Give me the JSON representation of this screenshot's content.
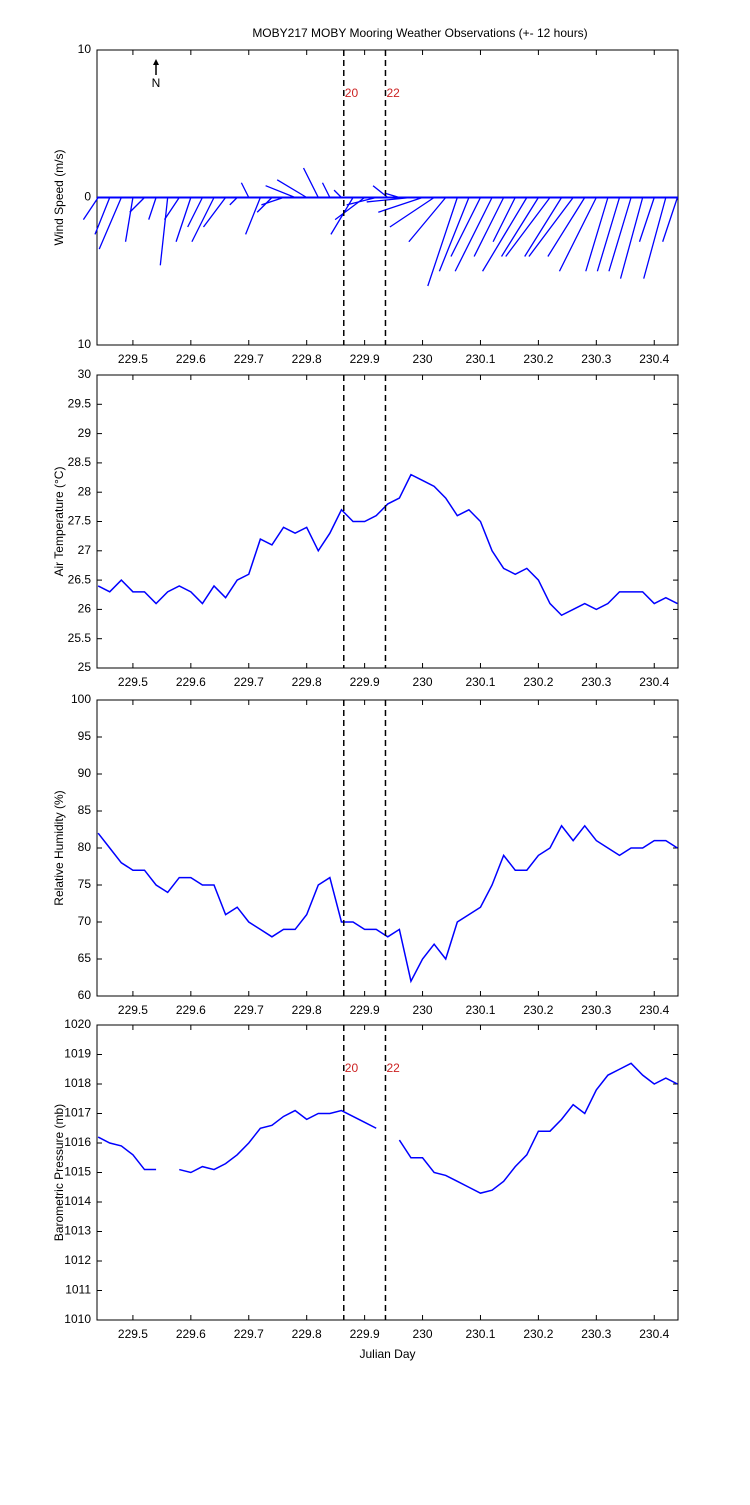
{
  "chart_data": [
    {
      "type": "stick",
      "title": "MOBY217 MOBY Mooring Weather Observations (+- 12 hours)",
      "ylabel": "Wind Speed (m/s)",
      "color": "#0000ff",
      "xlim": [
        229.438,
        230.441
      ],
      "xticks": [
        229.5,
        229.6,
        229.7,
        229.8,
        229.9,
        230,
        230.1,
        230.2,
        230.3,
        230.4
      ],
      "ylim": [
        -10,
        10
      ],
      "yticks": [
        {
          "value": -10,
          "label": "10"
        },
        0,
        10
      ],
      "north_label": "N",
      "vlines": [
        {
          "x": 229.864,
          "label": "20"
        },
        {
          "x": 229.936,
          "label": "22"
        }
      ],
      "vline_label_color": "#cc2222",
      "x": [
        229.44,
        229.46,
        229.48,
        229.5,
        229.52,
        229.54,
        229.56,
        229.58,
        229.6,
        229.62,
        229.64,
        229.66,
        229.68,
        229.7,
        229.72,
        229.74,
        229.76,
        229.78,
        229.8,
        229.82,
        229.84,
        229.86,
        229.88,
        229.9,
        229.92,
        229.94,
        229.96,
        229.98,
        230,
        230.02,
        230.04,
        230.06,
        230.08,
        230.1,
        230.12,
        230.14,
        230.16,
        230.18,
        230.2,
        230.22,
        230.24,
        230.26,
        230.28,
        230.3,
        230.32,
        230.34,
        230.36,
        230.38,
        230.4,
        230.42,
        230.44
      ],
      "u": [
        -1,
        -1,
        -1.5,
        -0.5,
        -1,
        -0.5,
        -0.5,
        -1,
        -1,
        -1,
        -1.5,
        -1.5,
        -0.5,
        -0.5,
        -1,
        -1,
        -1.5,
        -2,
        -2,
        -1,
        -0.5,
        -0.5,
        -1.5,
        -2,
        -2,
        -1,
        -1,
        -3,
        -3,
        -3,
        -2.5,
        -2,
        -2,
        -2,
        -2.5,
        -2,
        -1.5,
        -3,
        -2.5,
        -3,
        -2.5,
        -3,
        -2.5,
        -2.5,
        -1.5,
        -1.5,
        -1.5,
        -1.5,
        -1,
        -1.5,
        -1
      ],
      "v": [
        -1.5,
        -2.5,
        -3.5,
        -3,
        -1,
        -1.5,
        -4.6,
        -1.5,
        -3,
        -2,
        -3,
        -2,
        -0.5,
        1,
        -2.5,
        -1,
        -0.5,
        0.8,
        1.2,
        2,
        1,
        0.5,
        -2.5,
        -1.5,
        -0.5,
        0.8,
        0.3,
        -0.3,
        -1,
        -2,
        -3,
        -6,
        -5,
        -4,
        -5,
        -4,
        -3,
        -5,
        -4,
        -4,
        -4,
        -4,
        -4,
        -5,
        -5,
        -5,
        -5,
        -5.5,
        -3,
        -5.5,
        -3
      ]
    },
    {
      "type": "line",
      "ylabel": "Air Temperature (°C)",
      "color": "#0000ff",
      "xlim": [
        229.438,
        230.441
      ],
      "xticks": [
        229.5,
        229.6,
        229.7,
        229.8,
        229.9,
        230,
        230.1,
        230.2,
        230.3,
        230.4
      ],
      "ylim": [
        25,
        30
      ],
      "yticks": [
        25,
        25.5,
        26,
        26.5,
        27,
        27.5,
        28,
        28.5,
        29,
        29.5,
        30
      ],
      "vlines": [
        {
          "x": 229.864
        },
        {
          "x": 229.936
        }
      ],
      "x": [
        229.44,
        229.46,
        229.48,
        229.5,
        229.52,
        229.54,
        229.56,
        229.58,
        229.6,
        229.62,
        229.64,
        229.66,
        229.68,
        229.7,
        229.72,
        229.74,
        229.76,
        229.78,
        229.8,
        229.82,
        229.84,
        229.86,
        229.88,
        229.9,
        229.92,
        229.94,
        229.96,
        229.98,
        230,
        230.02,
        230.04,
        230.06,
        230.08,
        230.1,
        230.12,
        230.14,
        230.16,
        230.18,
        230.2,
        230.22,
        230.24,
        230.26,
        230.28,
        230.3,
        230.32,
        230.34,
        230.36,
        230.38,
        230.4,
        230.42,
        230.44
      ],
      "values": [
        26.4,
        26.3,
        26.5,
        26.3,
        26.3,
        26.1,
        26.3,
        26.4,
        26.3,
        26.1,
        26.4,
        26.2,
        26.5,
        26.6,
        27.2,
        27.1,
        27.4,
        27.3,
        27.4,
        27.0,
        27.3,
        27.7,
        27.5,
        27.5,
        27.6,
        27.8,
        27.9,
        28.3,
        28.2,
        28.1,
        27.9,
        27.6,
        27.7,
        27.5,
        27.0,
        26.7,
        26.6,
        26.7,
        26.5,
        26.1,
        25.9,
        26.0,
        26.1,
        26.0,
        26.1,
        26.3,
        26.3,
        26.3,
        26.1,
        26.2,
        26.1
      ]
    },
    {
      "type": "line",
      "ylabel": "Relative Humidity (%)",
      "color": "#0000ff",
      "xlim": [
        229.438,
        230.441
      ],
      "xticks": [
        229.5,
        229.6,
        229.7,
        229.8,
        229.9,
        230,
        230.1,
        230.2,
        230.3,
        230.4
      ],
      "ylim": [
        60,
        100
      ],
      "yticks": [
        60,
        65,
        70,
        75,
        80,
        85,
        90,
        95,
        100
      ],
      "vlines": [
        {
          "x": 229.864
        },
        {
          "x": 229.936
        }
      ],
      "x": [
        229.44,
        229.46,
        229.48,
        229.5,
        229.52,
        229.54,
        229.56,
        229.58,
        229.6,
        229.62,
        229.64,
        229.66,
        229.68,
        229.7,
        229.72,
        229.74,
        229.76,
        229.78,
        229.8,
        229.82,
        229.84,
        229.86,
        229.88,
        229.9,
        229.92,
        229.94,
        229.96,
        229.98,
        230,
        230.02,
        230.04,
        230.06,
        230.08,
        230.1,
        230.12,
        230.14,
        230.16,
        230.18,
        230.2,
        230.22,
        230.24,
        230.26,
        230.28,
        230.3,
        230.32,
        230.34,
        230.36,
        230.38,
        230.4,
        230.42,
        230.44
      ],
      "values": [
        82,
        80,
        78,
        77,
        77,
        75,
        74,
        76,
        76,
        75,
        75,
        71,
        72,
        70,
        69,
        68,
        69,
        69,
        71,
        75,
        76,
        70,
        70,
        69,
        69,
        68,
        69,
        62,
        65,
        67,
        65,
        70,
        71,
        72,
        75,
        79,
        77,
        77,
        79,
        80,
        83,
        81,
        83,
        81,
        80,
        79,
        80,
        80,
        81,
        81,
        80
      ]
    },
    {
      "type": "line",
      "ylabel": "Barometric Pressure (mb)",
      "xlabel": "Julian Day",
      "color": "#0000ff",
      "xlim": [
        229.438,
        230.441
      ],
      "xticks": [
        229.5,
        229.6,
        229.7,
        229.8,
        229.9,
        230,
        230.1,
        230.2,
        230.3,
        230.4
      ],
      "ylim": [
        1010,
        1020
      ],
      "yticks": [
        1010,
        1011,
        1012,
        1013,
        1014,
        1015,
        1016,
        1017,
        1018,
        1019,
        1020
      ],
      "vlines": [
        {
          "x": 229.864,
          "label": "20"
        },
        {
          "x": 229.936,
          "label": "22"
        }
      ],
      "vline_label_color": "#cc2222",
      "x": [
        229.44,
        229.46,
        229.48,
        229.5,
        229.52,
        229.54,
        229.56,
        229.58,
        229.6,
        229.62,
        229.64,
        229.66,
        229.68,
        229.7,
        229.72,
        229.74,
        229.76,
        229.78,
        229.8,
        229.82,
        229.84,
        229.86,
        229.88,
        229.9,
        229.92,
        229.94,
        229.96,
        229.98,
        230,
        230.02,
        230.04,
        230.06,
        230.08,
        230.1,
        230.12,
        230.14,
        230.16,
        230.18,
        230.2,
        230.22,
        230.24,
        230.26,
        230.28,
        230.3,
        230.32,
        230.34,
        230.36,
        230.38,
        230.4,
        230.42,
        230.44
      ],
      "values": [
        1016.2,
        1016.0,
        1015.9,
        1015.6,
        1015.1,
        1015.1,
        null,
        1015.1,
        1015.0,
        1015.2,
        1015.1,
        1015.3,
        1015.6,
        1016.0,
        1016.5,
        1016.6,
        1016.9,
        1017.1,
        1016.8,
        1017.0,
        1017.0,
        1017.1,
        1016.9,
        1016.7,
        1016.5,
        null,
        1016.1,
        1015.5,
        1015.5,
        1015.0,
        1014.9,
        1014.7,
        1014.5,
        1014.3,
        1014.4,
        1014.7,
        1015.2,
        1015.6,
        1016.4,
        1016.4,
        1016.8,
        1017.3,
        1017.0,
        1017.8,
        1018.3,
        1018.5,
        1018.7,
        1018.3,
        1018.0,
        1018.2,
        1018.0
      ]
    }
  ]
}
